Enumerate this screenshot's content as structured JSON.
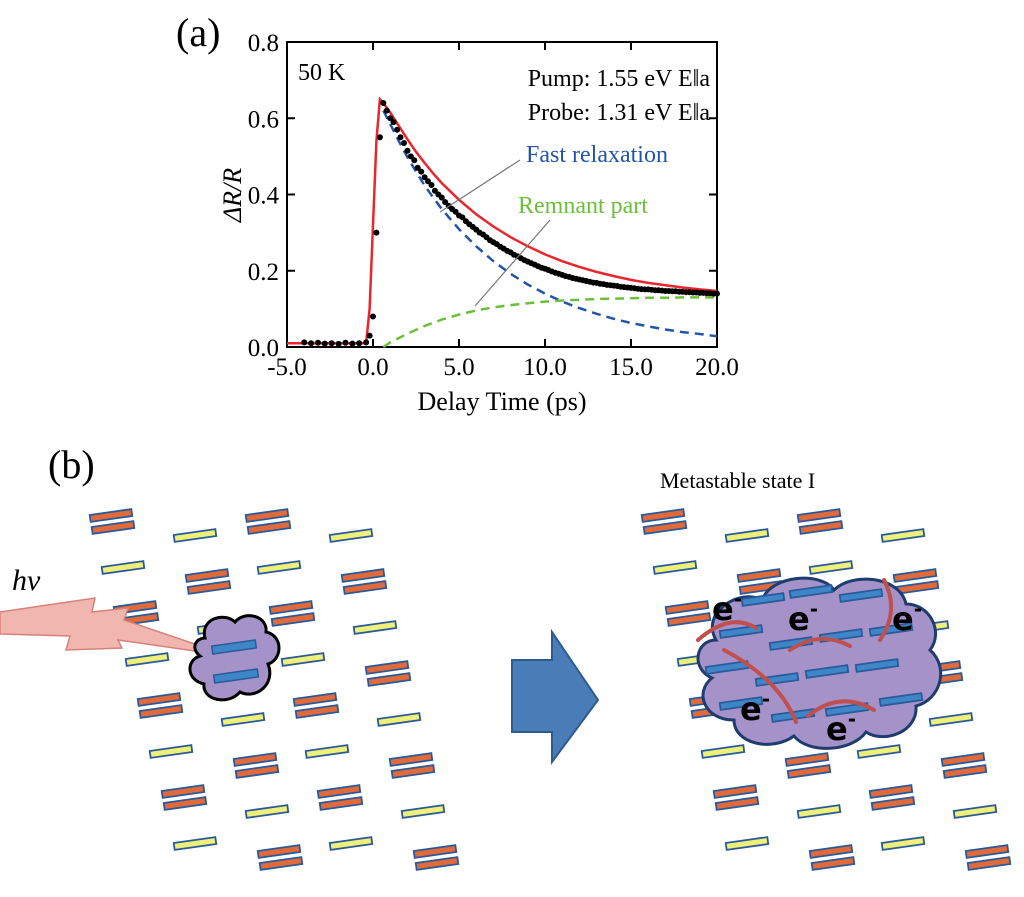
{
  "panel_a": {
    "label": "(a)",
    "temperature": "50 K",
    "pump": "Pump: 1.55 eV E‖a",
    "probe": "Probe: 1.31 eV E‖a",
    "annotation_fast": "Fast relaxation",
    "annotation_remnant": "Remnant part"
  },
  "panel_b": {
    "label": "(b)",
    "photon_label": "hν",
    "metastable_label": "Metastable state I",
    "electron_label": "e",
    "electron_charge": "-"
  },
  "colors": {
    "fit": "#e8262b",
    "fast": "#2255a8",
    "remnant": "#6cbf3a",
    "data": "#000000",
    "rod_orange": "#e06a3a",
    "rod_yellow": "#eef07a",
    "rod_blue": "#3f86c8",
    "rod_edge": "#2a5a9a",
    "cloud": "#a592c9",
    "arrow": "#4a7cb8",
    "lightning": "#f2b6b0",
    "trail": "#c0504d"
  },
  "chart_data": {
    "type": "line",
    "title": "",
    "xlabel": "Delay Time (ps)",
    "ylabel": "ΔR/R",
    "xlim": [
      -5.0,
      20.0
    ],
    "ylim": [
      0.0,
      0.8
    ],
    "xticks": [
      -5.0,
      0.0,
      5.0,
      10.0,
      15.0,
      20.0
    ],
    "xtick_labels": [
      "-5.0",
      "0.0",
      "5.0",
      "10.0",
      "15.0",
      "20.0"
    ],
    "yticks": [
      0.0,
      0.2,
      0.4,
      0.6,
      0.8
    ],
    "ytick_labels": [
      "0.0",
      "0.2",
      "0.4",
      "0.6",
      "0.8"
    ],
    "grid": false,
    "series": [
      {
        "style": "scatter",
        "x": [
          -4.0,
          -3.6,
          -3.2,
          -2.8,
          -2.4,
          -2.0,
          -1.6,
          -1.2,
          -0.8,
          -0.4,
          -0.2,
          0.0,
          0.2,
          0.4,
          0.6,
          0.8,
          1.0,
          1.2,
          1.4,
          1.6,
          1.8,
          2.0,
          2.2,
          2.4,
          2.6,
          2.8,
          3.0,
          3.2,
          3.4,
          3.6,
          3.8,
          4.0,
          4.2,
          4.4,
          4.6,
          4.8,
          5.0,
          5.2,
          5.4,
          5.6,
          5.8,
          6.0,
          6.2,
          6.4,
          6.6,
          6.8,
          7.0,
          7.2,
          7.4,
          7.6,
          7.8,
          8.0,
          8.2,
          8.4,
          8.6,
          8.8,
          9.0,
          9.2,
          9.4,
          9.6,
          9.8,
          10.0,
          10.2,
          10.4,
          10.6,
          10.8,
          11.0,
          11.2,
          11.4,
          11.6,
          11.8,
          12.0,
          12.2,
          12.4,
          12.6,
          12.8,
          13.0,
          13.2,
          13.4,
          13.6,
          13.8,
          14.0,
          14.2,
          14.4,
          14.6,
          14.8,
          15.0,
          15.2,
          15.4,
          15.6,
          15.8,
          16.0,
          16.2,
          16.4,
          16.6,
          16.8,
          17.0,
          17.2,
          17.4,
          17.6,
          17.8,
          18.0,
          18.2,
          18.4,
          18.6,
          18.8,
          19.0,
          19.2,
          19.4,
          19.6,
          19.8,
          20.0
        ],
        "y": [
          0.012,
          0.01,
          0.011,
          0.009,
          0.01,
          0.008,
          0.011,
          0.009,
          0.01,
          0.012,
          0.03,
          0.08,
          0.3,
          0.55,
          0.64,
          0.62,
          0.6,
          0.59,
          0.57,
          0.55,
          0.535,
          0.515,
          0.5,
          0.49,
          0.47,
          0.46,
          0.445,
          0.435,
          0.425,
          0.41,
          0.4,
          0.392,
          0.38,
          0.37,
          0.362,
          0.355,
          0.345,
          0.34,
          0.33,
          0.322,
          0.315,
          0.308,
          0.3,
          0.295,
          0.288,
          0.28,
          0.275,
          0.27,
          0.263,
          0.258,
          0.252,
          0.248,
          0.242,
          0.238,
          0.233,
          0.228,
          0.224,
          0.22,
          0.216,
          0.212,
          0.208,
          0.205,
          0.202,
          0.198,
          0.195,
          0.192,
          0.189,
          0.186,
          0.184,
          0.181,
          0.179,
          0.177,
          0.175,
          0.173,
          0.171,
          0.169,
          0.168,
          0.166,
          0.165,
          0.163,
          0.162,
          0.161,
          0.16,
          0.158,
          0.157,
          0.156,
          0.155,
          0.154,
          0.153,
          0.152,
          0.151,
          0.151,
          0.15,
          0.149,
          0.149,
          0.148,
          0.147,
          0.147,
          0.146,
          0.146,
          0.145,
          0.145,
          0.144,
          0.144,
          0.143,
          0.143,
          0.142,
          0.142,
          0.141,
          0.141,
          0.14,
          0.14
        ]
      },
      {
        "style": "line",
        "x": [
          -5.0,
          -1.0,
          -0.4,
          -0.2,
          0.0,
          0.2,
          0.4,
          0.6,
          1.0,
          1.5,
          2.0,
          2.5,
          3.0,
          3.5,
          4.0,
          5.0,
          6.0,
          7.0,
          8.0,
          9.0,
          10.0,
          11.0,
          12.0,
          13.0,
          14.0,
          15.0,
          16.0,
          17.0,
          18.0,
          19.0,
          20.0
        ],
        "y": [
          0.01,
          0.01,
          0.01,
          0.1,
          0.32,
          0.54,
          0.65,
          0.64,
          0.615,
          0.58,
          0.545,
          0.512,
          0.483,
          0.455,
          0.43,
          0.386,
          0.348,
          0.316,
          0.288,
          0.264,
          0.243,
          0.225,
          0.21,
          0.197,
          0.186,
          0.176,
          0.168,
          0.162,
          0.156,
          0.151,
          0.147
        ]
      },
      {
        "style": "dashed",
        "x": [
          0.6,
          1.0,
          1.5,
          2.0,
          2.5,
          3.0,
          3.5,
          4.0,
          5.0,
          6.0,
          7.0,
          8.0,
          9.0,
          10.0,
          11.0,
          12.0,
          13.0,
          14.0,
          15.0,
          16.0,
          17.0,
          18.0,
          19.0,
          20.0
        ],
        "y": [
          0.62,
          0.585,
          0.54,
          0.498,
          0.46,
          0.424,
          0.392,
          0.362,
          0.309,
          0.264,
          0.225,
          0.192,
          0.164,
          0.14,
          0.119,
          0.102,
          0.087,
          0.074,
          0.063,
          0.054,
          0.046,
          0.039,
          0.034,
          0.028
        ]
      },
      {
        "style": "dashed",
        "x": [
          0.6,
          1.0,
          2.0,
          3.0,
          4.0,
          5.0,
          6.0,
          7.0,
          8.0,
          9.0,
          10.0,
          11.0,
          12.0,
          13.0,
          14.0,
          15.0,
          16.0,
          17.0,
          18.0,
          19.0,
          20.0
        ],
        "y": [
          0.0,
          0.012,
          0.035,
          0.055,
          0.072,
          0.085,
          0.096,
          0.104,
          0.11,
          0.115,
          0.119,
          0.122,
          0.124,
          0.126,
          0.127,
          0.128,
          0.129,
          0.129,
          0.13,
          0.13,
          0.13
        ]
      }
    ]
  }
}
